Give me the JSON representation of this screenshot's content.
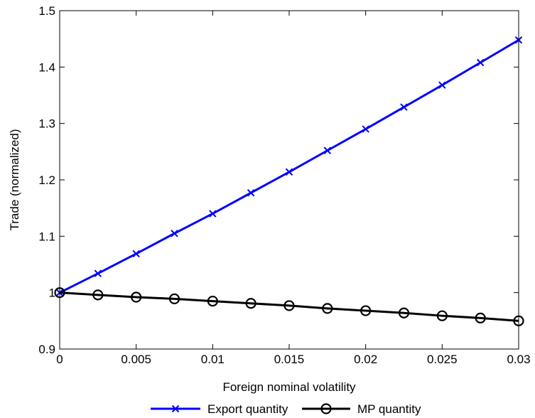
{
  "chart_data": {
    "type": "line",
    "xlabel": "Foreign nominal volatility",
    "ylabel": "Trade (normalized)",
    "xlim": [
      0,
      0.03
    ],
    "ylim": [
      0.9,
      1.5
    ],
    "x_ticks": [
      "0",
      "0.005",
      "0.01",
      "0.015",
      "0.02",
      "0.025",
      "0.03"
    ],
    "y_ticks": [
      "0.9",
      "1",
      "1.1",
      "1.2",
      "1.3",
      "1.4",
      "1.5"
    ],
    "grid": false,
    "legend_position": "bottom",
    "x": [
      0,
      0.0025,
      0.005,
      0.0075,
      0.01,
      0.0125,
      0.015,
      0.0175,
      0.02,
      0.0225,
      0.025,
      0.0275,
      0.03
    ],
    "series": [
      {
        "name": "Export quantity",
        "color": "#0000ff",
        "marker": "x-mark",
        "values": [
          1.0,
          1.034,
          1.069,
          1.105,
          1.14,
          1.177,
          1.214,
          1.252,
          1.29,
          1.329,
          1.368,
          1.408,
          1.448
        ]
      },
      {
        "name": "MP quantity",
        "color": "#000000",
        "marker": "circle",
        "values": [
          1.0,
          0.996,
          0.992,
          0.989,
          0.985,
          0.981,
          0.977,
          0.972,
          0.968,
          0.964,
          0.959,
          0.955,
          0.95
        ]
      }
    ]
  }
}
